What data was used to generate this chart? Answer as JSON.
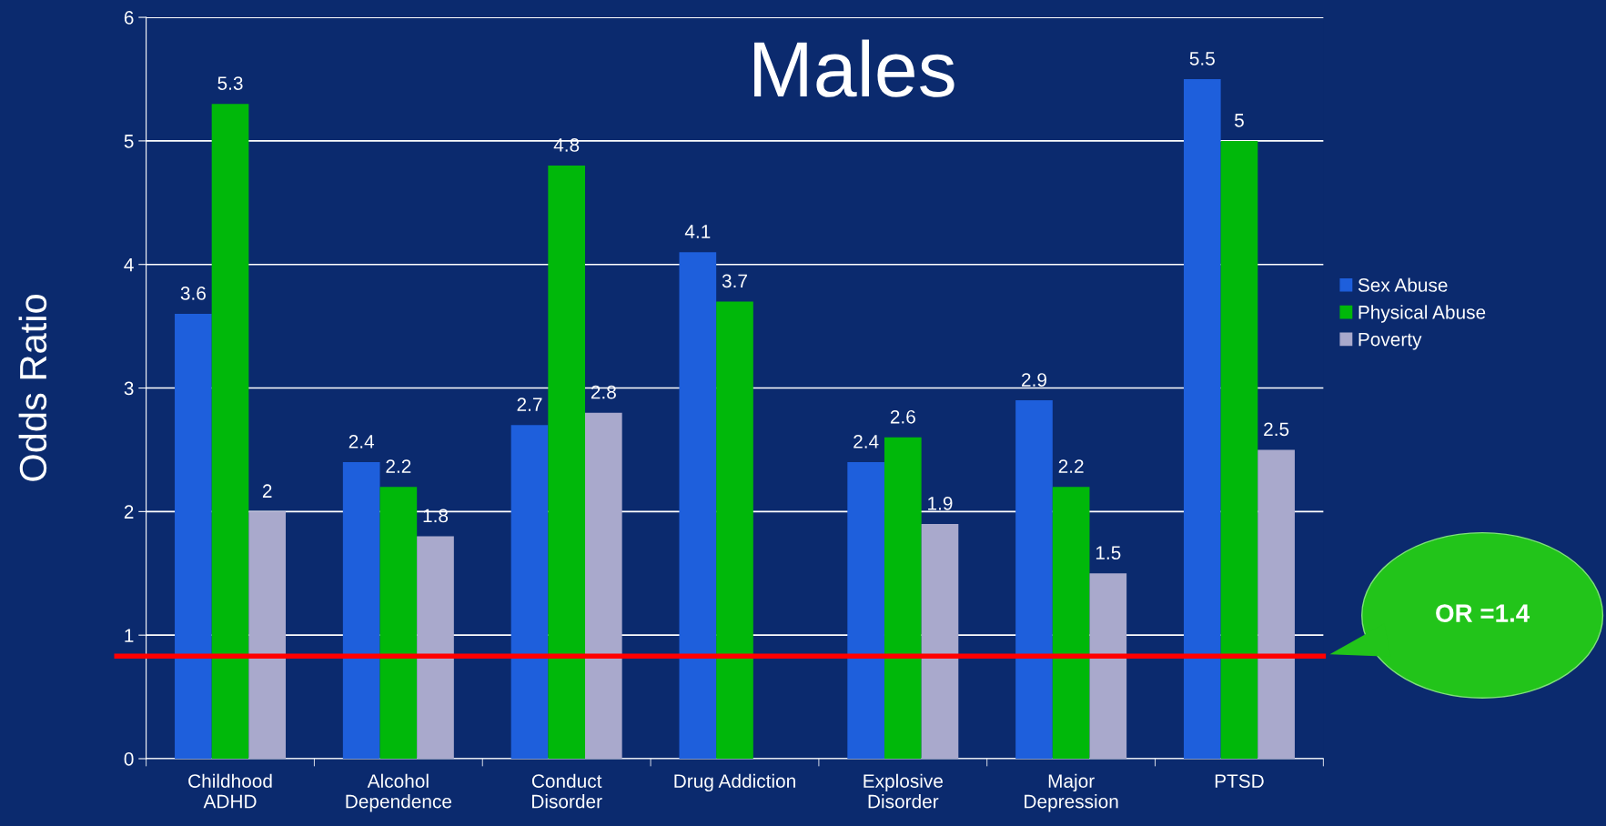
{
  "chart_data": {
    "type": "bar",
    "title": "Males",
    "ylabel": "Odds Ratio",
    "categories": [
      "Childhood\nADHD",
      "Alcohol\nDependence",
      "Conduct\nDisorder",
      "Drug Addiction",
      "Explosive\nDisorder",
      "Major\nDepression",
      "PTSD"
    ],
    "series": [
      {
        "name": "Sex Abuse",
        "color": "#1e5fdc",
        "values": [
          3.6,
          2.4,
          2.7,
          4.1,
          2.4,
          2.9,
          5.5
        ]
      },
      {
        "name": "Physical Abuse",
        "color": "#00b80a",
        "values": [
          5.3,
          2.2,
          4.8,
          3.7,
          2.6,
          2.2,
          5
        ]
      },
      {
        "name": "Poverty",
        "color": "#a9a9cc",
        "values": [
          2,
          1.8,
          2.8,
          null,
          1.9,
          1.5,
          2.5
        ]
      }
    ],
    "ylim": [
      0,
      6
    ],
    "yticks": [
      0,
      1,
      2,
      3,
      4,
      5,
      6
    ],
    "grid": "y",
    "legend": "right",
    "data_labels": true,
    "ref_lines": [
      {
        "axis": "y",
        "value": 0.83,
        "color": "#ff0000"
      }
    ],
    "annotations": [
      "OR =1.4"
    ]
  }
}
